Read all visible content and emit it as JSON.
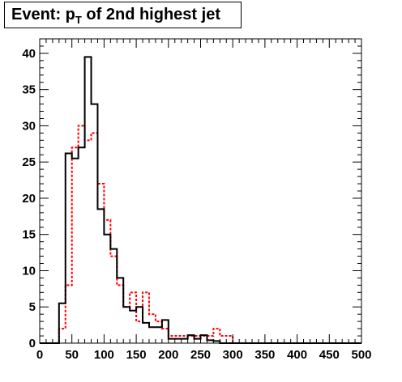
{
  "title": {
    "pre": "Event: p",
    "sub": "T",
    "post": " of 2nd highest jet"
  },
  "chart_data": {
    "type": "histogram",
    "title": "Event: p_T of 2nd highest jet",
    "xlabel": "",
    "ylabel": "",
    "xlim": [
      0,
      500
    ],
    "ylim": [
      0,
      42
    ],
    "bin_width": 10,
    "x_ticks": [
      "0",
      "50",
      "100",
      "150",
      "200",
      "250",
      "300",
      "350",
      "400",
      "450",
      "500"
    ],
    "x_tick_values": [
      0,
      50,
      100,
      150,
      200,
      250,
      300,
      350,
      400,
      450,
      500
    ],
    "y_ticks": [
      "0",
      "5",
      "10",
      "15",
      "20",
      "25",
      "30",
      "35",
      "40"
    ],
    "y_tick_values": [
      0,
      5,
      10,
      15,
      20,
      25,
      30,
      35,
      40
    ],
    "grid": false,
    "legend": "none",
    "series": [
      {
        "style": "solid",
        "color": "#000000",
        "values": [
          0,
          0,
          0,
          5.5,
          26.2,
          25.5,
          27.0,
          39.5,
          33.0,
          18.5,
          15.0,
          13.0,
          9.0,
          5.0,
          4.5,
          5.0,
          2.8,
          2.2,
          2.2,
          3.2,
          0.6,
          0.6,
          0.6,
          1.1,
          0.6,
          1.1,
          0.4,
          0.3,
          0,
          0,
          0,
          0,
          0,
          0,
          0,
          0,
          0,
          0,
          0,
          0,
          0,
          0,
          0,
          0,
          0,
          0,
          0,
          0,
          0,
          0
        ]
      },
      {
        "style": "dashed",
        "color": "#ff0000",
        "values": [
          0,
          0,
          0,
          2.0,
          8.0,
          27.0,
          30.0,
          28.0,
          29.0,
          22.0,
          17.0,
          12.0,
          8.0,
          5.0,
          7.0,
          3.0,
          7.0,
          4.0,
          3.0,
          2.0,
          1.0,
          1.0,
          1.0,
          1.0,
          1.0,
          1.0,
          1.0,
          2.0,
          1.0,
          1.0,
          0,
          0,
          0,
          0,
          0,
          0,
          0,
          0,
          0,
          0,
          0,
          0,
          0,
          0,
          0,
          0,
          0,
          0,
          0,
          0
        ]
      }
    ]
  }
}
